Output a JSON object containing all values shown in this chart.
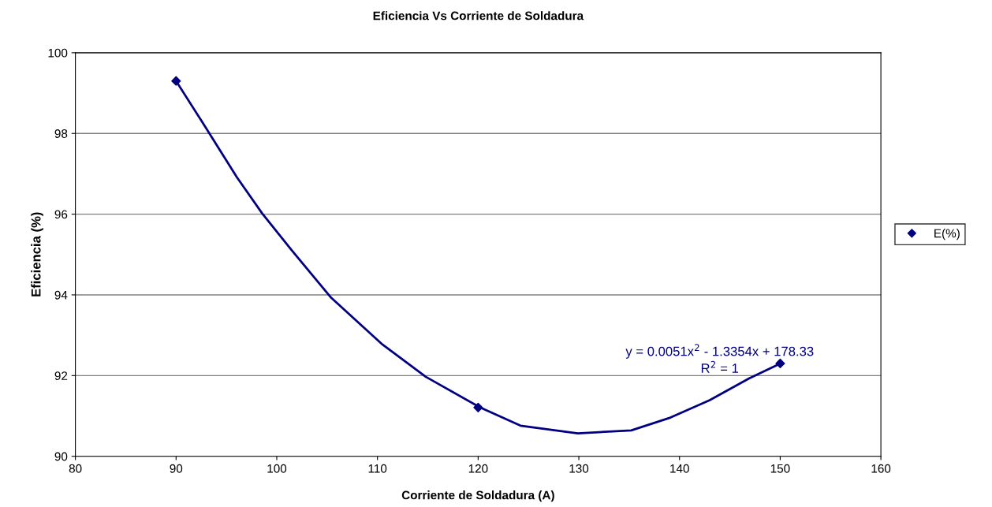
{
  "chart_data": {
    "type": "scatter",
    "title": "Eficiencia Vs Corriente de Soldadura",
    "xlabel": "Corriente de Soldadura (A)",
    "ylabel": "Eficiencia (%)",
    "xlim": [
      80,
      160
    ],
    "xticks": [
      80,
      90,
      100,
      110,
      120,
      130,
      140,
      150,
      160
    ],
    "ylim": [
      90,
      100
    ],
    "yticks": [
      90,
      92,
      94,
      96,
      98,
      100
    ],
    "grid": "y",
    "legend": "right",
    "marker": "diamond",
    "series": [
      {
        "name": "E(%)",
        "color": "#000080",
        "x": [
          90,
          120,
          150
        ],
        "values": [
          99.3,
          91.21,
          92.3
        ]
      },
      {
        "type": "line",
        "color": "#000080",
        "marker": "none",
        "x": [
          90,
          92.5,
          96.05,
          98.55,
          101.5,
          105.4,
          110.5,
          114.8,
          120.2,
          124.2,
          129.9,
          135.2,
          139.1,
          143.0,
          146.9,
          150
        ],
        "values": [
          99.3,
          98.32,
          96.91,
          96.02,
          95.1,
          93.93,
          92.77,
          91.97,
          91.21,
          90.76,
          90.57,
          90.64,
          90.96,
          91.39,
          91.93,
          92.3
        ]
      }
    ],
    "annotations": [
      "y = 0.0051x$^{2}$ - 1.3354x + 178.33",
      "R$^{2}$ = 1"
    ]
  }
}
